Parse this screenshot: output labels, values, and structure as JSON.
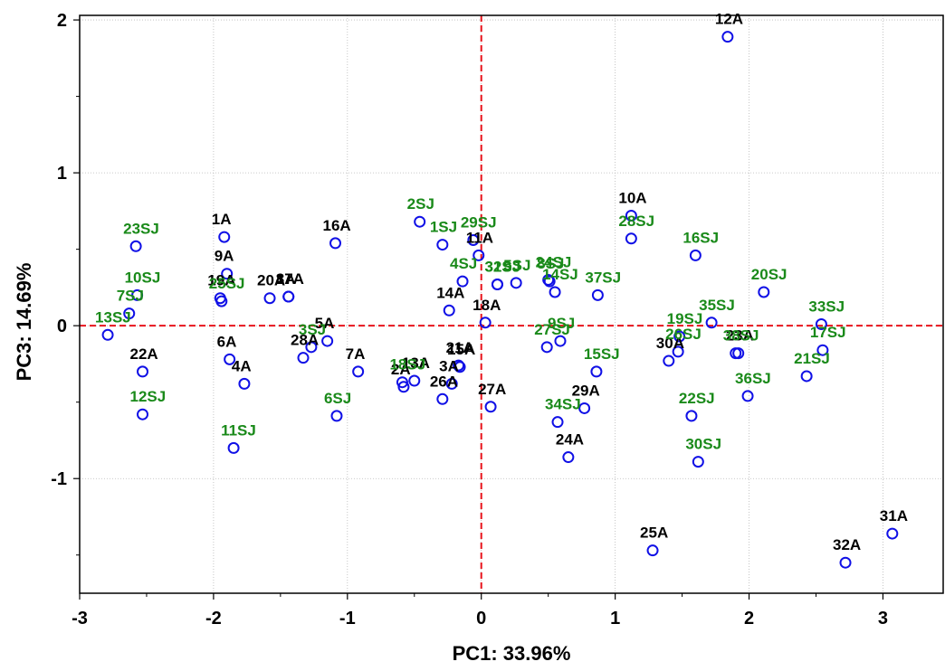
{
  "chart_data": {
    "type": "scatter",
    "xlabel": "PC1: 33.96%",
    "ylabel": "PC3: 14.69%",
    "xlim": [
      -3,
      3.45
    ],
    "ylim": [
      -1.75,
      2.03
    ],
    "x_ticks": [
      -3,
      -2,
      -1,
      0,
      1,
      2,
      3
    ],
    "y_ticks": [
      -1,
      0,
      1,
      2
    ],
    "grid": true,
    "reference_lines": {
      "x": 0,
      "y": 0,
      "color": "#e8141c"
    },
    "colors": {
      "marker": "#1010e6",
      "A": "#000000",
      "SJ": "#1a8a1a"
    },
    "series": [
      {
        "name": "A",
        "points": [
          {
            "label": "1A",
            "x": -1.92,
            "y": 0.58
          },
          {
            "label": "2A",
            "x": -0.58,
            "y": -0.4
          },
          {
            "label": "3A",
            "x": -0.22,
            "y": -0.38
          },
          {
            "label": "4A",
            "x": -1.77,
            "y": -0.38
          },
          {
            "label": "5A",
            "x": -1.15,
            "y": -0.1
          },
          {
            "label": "6A",
            "x": -1.88,
            "y": -0.22
          },
          {
            "label": "7A",
            "x": -0.92,
            "y": -0.3
          },
          {
            "label": "8A",
            "x": -1.44,
            "y": 0.19
          },
          {
            "label": "9A",
            "x": -1.9,
            "y": 0.34
          },
          {
            "label": "10A",
            "x": 1.12,
            "y": 0.72
          },
          {
            "label": "11A",
            "x": -0.02,
            "y": 0.46
          },
          {
            "label": "12A",
            "x": 1.84,
            "y": 1.89
          },
          {
            "label": "13A",
            "x": -0.5,
            "y": -0.36
          },
          {
            "label": "14A",
            "x": -0.24,
            "y": 0.1
          },
          {
            "label": "15A",
            "x": -0.16,
            "y": -0.27
          },
          {
            "label": "16A",
            "x": -1.09,
            "y": 0.54
          },
          {
            "label": "17A",
            "x": -1.44,
            "y": 0.19
          },
          {
            "label": "18A",
            "x": 0.03,
            "y": 0.02
          },
          {
            "label": "19A",
            "x": -1.95,
            "y": 0.18
          },
          {
            "label": "20A",
            "x": -1.58,
            "y": 0.18
          },
          {
            "label": "21A",
            "x": -0.17,
            "y": -0.26
          },
          {
            "label": "22A",
            "x": -2.53,
            "y": -0.3
          },
          {
            "label": "23A",
            "x": 1.92,
            "y": -0.18
          },
          {
            "label": "24A",
            "x": 0.65,
            "y": -0.86
          },
          {
            "label": "25A",
            "x": 1.28,
            "y": -1.47
          },
          {
            "label": "26A",
            "x": -0.29,
            "y": -0.48
          },
          {
            "label": "27A",
            "x": 0.07,
            "y": -0.53
          },
          {
            "label": "28A",
            "x": -1.33,
            "y": -0.21
          },
          {
            "label": "29A",
            "x": 0.77,
            "y": -0.54
          },
          {
            "label": "30A",
            "x": 1.4,
            "y": -0.23
          },
          {
            "label": "31A",
            "x": 3.07,
            "y": -1.36
          },
          {
            "label": "32A",
            "x": 2.72,
            "y": -1.55
          }
        ]
      },
      {
        "name": "SJ",
        "points": [
          {
            "label": "1SJ",
            "x": -0.29,
            "y": 0.53
          },
          {
            "label": "2SJ",
            "x": -0.46,
            "y": 0.68
          },
          {
            "label": "3SJ",
            "x": -1.27,
            "y": -0.14
          },
          {
            "label": "4SJ",
            "x": -0.14,
            "y": 0.29
          },
          {
            "label": "5SJ",
            "x": 0.26,
            "y": 0.28
          },
          {
            "label": "6SJ",
            "x": -1.08,
            "y": -0.59
          },
          {
            "label": "7SJ",
            "x": -2.63,
            "y": 0.08
          },
          {
            "label": "8SJ",
            "x": 0.51,
            "y": 0.29
          },
          {
            "label": "9SJ",
            "x": 0.59,
            "y": -0.1
          },
          {
            "label": "10SJ",
            "x": -2.57,
            "y": 0.2
          },
          {
            "label": "11SJ",
            "x": -1.85,
            "y": -0.8
          },
          {
            "label": "12SJ",
            "x": -2.53,
            "y": -0.58
          },
          {
            "label": "13SJ",
            "x": -2.79,
            "y": -0.06
          },
          {
            "label": "14SJ",
            "x": 0.55,
            "y": 0.22
          },
          {
            "label": "15SJ",
            "x": 0.86,
            "y": -0.3
          },
          {
            "label": "16SJ",
            "x": 1.6,
            "y": 0.46
          },
          {
            "label": "17SJ",
            "x": 2.55,
            "y": -0.16
          },
          {
            "label": "18SJ",
            "x": -0.59,
            "y": -0.37
          },
          {
            "label": "19SJ",
            "x": 1.48,
            "y": -0.07
          },
          {
            "label": "20SJ",
            "x": 2.11,
            "y": 0.22
          },
          {
            "label": "21SJ",
            "x": 2.43,
            "y": -0.33
          },
          {
            "label": "22SJ",
            "x": 1.57,
            "y": -0.59
          },
          {
            "label": "23SJ",
            "x": -2.58,
            "y": 0.52
          },
          {
            "label": "24SJ",
            "x": 0.5,
            "y": 0.3
          },
          {
            "label": "25SJ",
            "x": -1.94,
            "y": 0.16
          },
          {
            "label": "26SJ",
            "x": 1.47,
            "y": -0.17
          },
          {
            "label": "27SJ",
            "x": 0.49,
            "y": -0.14
          },
          {
            "label": "28SJ",
            "x": 1.12,
            "y": 0.57
          },
          {
            "label": "29SJ",
            "x": -0.06,
            "y": 0.56
          },
          {
            "label": "30SJ",
            "x": 1.62,
            "y": -0.89
          },
          {
            "label": "31SJ",
            "x": 0.12,
            "y": 0.27
          },
          {
            "label": "32SJ",
            "x": 0.12,
            "y": 0.27
          },
          {
            "label": "33SJ",
            "x": 2.54,
            "y": 0.01
          },
          {
            "label": "34SJ",
            "x": 0.57,
            "y": -0.63
          },
          {
            "label": "35SJ",
            "x": 1.72,
            "y": 0.02
          },
          {
            "label": "36SJ",
            "x": 1.99,
            "y": -0.46
          },
          {
            "label": "37SJ",
            "x": 0.87,
            "y": 0.2
          },
          {
            "label": "38SJ",
            "x": 1.9,
            "y": -0.18
          }
        ]
      }
    ]
  }
}
